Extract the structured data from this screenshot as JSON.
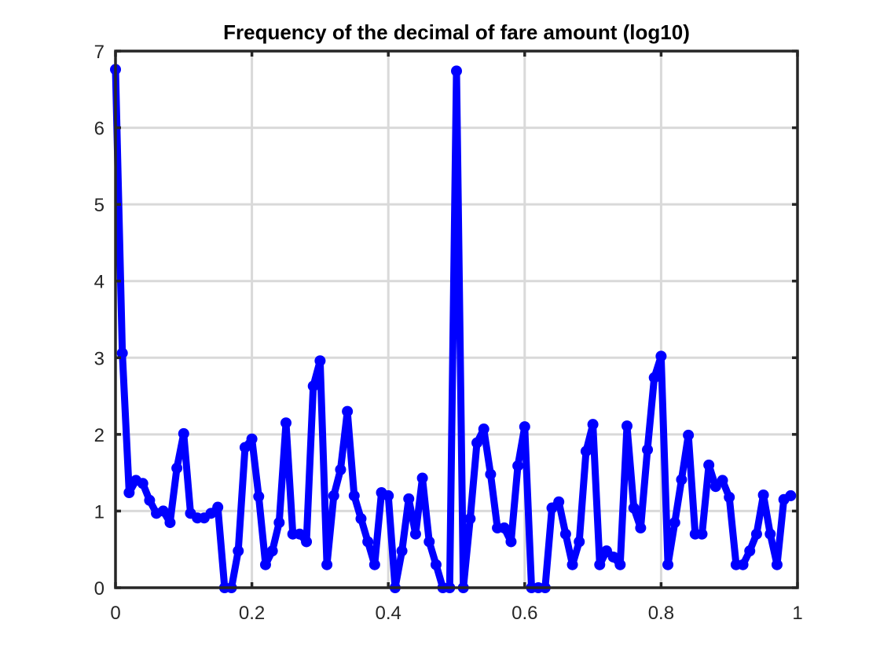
{
  "chart_data": {
    "type": "line",
    "title": "Frequency of the decimal of fare amount (log10)",
    "xlabel": "",
    "ylabel": "",
    "xlim": [
      0,
      1
    ],
    "ylim": [
      0,
      7
    ],
    "grid": true,
    "xticks": [
      0,
      0.2,
      0.4,
      0.6,
      0.8,
      1
    ],
    "xtick_labels": [
      "0",
      "0.2",
      "0.4",
      "0.6",
      "0.8",
      "1"
    ],
    "yticks": [
      0,
      1,
      2,
      3,
      4,
      5,
      6,
      7
    ],
    "ytick_labels": [
      "0",
      "1",
      "2",
      "3",
      "4",
      "5",
      "6",
      "7"
    ],
    "series": [
      {
        "color": "#0000ff",
        "x": [
          0.0,
          0.01,
          0.02,
          0.03,
          0.04,
          0.05,
          0.06,
          0.07,
          0.08,
          0.09,
          0.1,
          0.11,
          0.12,
          0.13,
          0.14,
          0.15,
          0.16,
          0.17,
          0.18,
          0.19,
          0.2,
          0.21,
          0.22,
          0.23,
          0.24,
          0.25,
          0.26,
          0.27,
          0.28,
          0.29,
          0.3,
          0.31,
          0.32,
          0.33,
          0.34,
          0.35,
          0.36,
          0.37,
          0.38,
          0.39,
          0.4,
          0.41,
          0.42,
          0.43,
          0.44,
          0.45,
          0.46,
          0.47,
          0.48,
          0.49,
          0.5,
          0.51,
          0.52,
          0.53,
          0.54,
          0.55,
          0.56,
          0.57,
          0.58,
          0.59,
          0.6,
          0.61,
          0.62,
          0.63,
          0.64,
          0.65,
          0.66,
          0.67,
          0.68,
          0.69,
          0.7,
          0.71,
          0.72,
          0.73,
          0.74,
          0.75,
          0.76,
          0.77,
          0.78,
          0.79,
          0.8,
          0.81,
          0.82,
          0.83,
          0.84,
          0.85,
          0.86,
          0.87,
          0.88,
          0.89,
          0.9,
          0.91,
          0.92,
          0.93,
          0.94,
          0.95,
          0.96,
          0.97,
          0.98,
          0.99
        ],
        "y": [
          6.76,
          3.06,
          1.24,
          1.4,
          1.36,
          1.14,
          0.97,
          1.0,
          0.85,
          1.56,
          2.01,
          0.97,
          0.91,
          0.91,
          0.97,
          1.05,
          0.0,
          0.0,
          0.48,
          1.83,
          1.94,
          1.19,
          0.3,
          0.48,
          0.85,
          2.15,
          0.7,
          0.7,
          0.6,
          2.63,
          2.96,
          0.3,
          1.2,
          1.54,
          2.3,
          1.2,
          0.9,
          0.6,
          0.3,
          1.24,
          1.2,
          0.0,
          0.48,
          1.16,
          0.7,
          1.43,
          0.6,
          0.3,
          0.0,
          0.0,
          6.74,
          0.0,
          0.9,
          1.89,
          2.07,
          1.48,
          0.78,
          0.78,
          0.6,
          1.59,
          2.1,
          0.0,
          0.0,
          0.0,
          1.04,
          1.12,
          0.7,
          0.3,
          0.6,
          1.78,
          2.13,
          0.3,
          0.48,
          0.4,
          0.3,
          2.11,
          1.04,
          0.78,
          1.8,
          2.74,
          3.02,
          0.3,
          0.85,
          1.41,
          1.99,
          0.7,
          0.7,
          1.6,
          1.32,
          1.4,
          1.18,
          0.3,
          0.3,
          0.48,
          0.7,
          1.21,
          0.7,
          0.3,
          1.15,
          1.2
        ]
      }
    ]
  }
}
